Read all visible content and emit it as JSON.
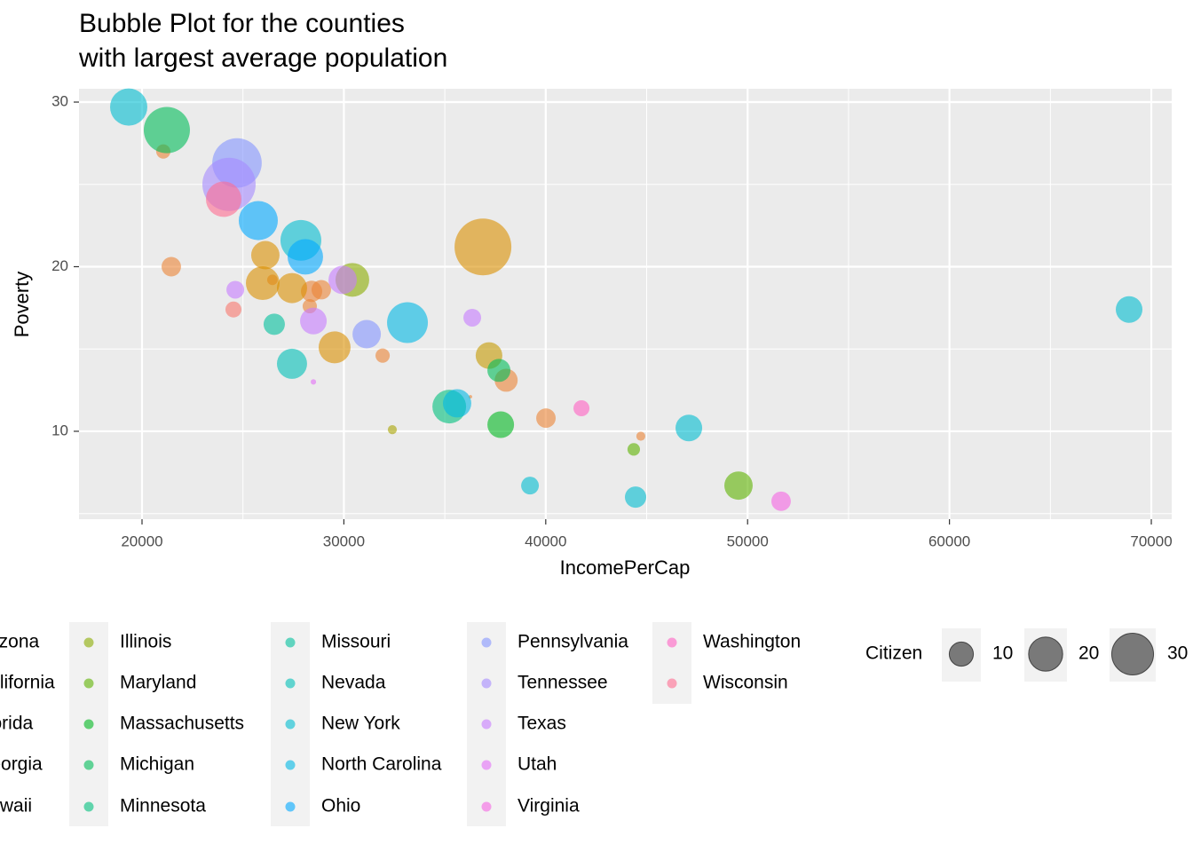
{
  "chart_data": {
    "type": "scatter",
    "title": "Bubble Plot for the counties\nwith largest average population",
    "x_label": "IncomePerCap",
    "y_label": "Poverty",
    "xlim": [
      16878,
      71010
    ],
    "ylim": [
      4.66,
      30.81
    ],
    "xticks": [
      20000,
      30000,
      40000,
      50000,
      60000,
      70000
    ],
    "yticks": [
      10,
      20,
      30
    ],
    "grid": true,
    "minor_grid": true,
    "size_legend": {
      "title": "Citizen",
      "values": [
        10,
        20,
        30
      ]
    },
    "series": [
      {
        "name": "Arizona",
        "color": "#F8766D",
        "x": [
          24530
        ],
        "values": [
          17.4
        ],
        "size": [
          4.4
        ]
      },
      {
        "name": "California",
        "color": "#EB8335",
        "x": [
          21055,
          21450,
          26460,
          28400,
          28880,
          28310,
          31920,
          38040,
          36270,
          40010,
          44710
        ],
        "values": [
          27.0,
          20.0,
          19.2,
          18.5,
          18.6,
          17.6,
          14.6,
          13.1,
          12.1,
          10.8,
          9.7
        ],
        "size": [
          3.5,
          6.5,
          1.9,
          7.8,
          6.5,
          3.5,
          3.5,
          9.1,
          0.2,
          6.5,
          1.4
        ]
      },
      {
        "name": "Florida",
        "color": "#DA8F00",
        "x": [
          36890,
          26110,
          25980,
          27430,
          29540
        ],
        "values": [
          21.2,
          20.7,
          19.0,
          18.7,
          15.1
        ],
        "size": [
          55.4,
          13.8,
          19.5,
          15.6,
          17.5
        ]
      },
      {
        "name": "Georgia",
        "color": "#C49A00",
        "x": [
          37190
        ],
        "values": [
          14.6
        ],
        "size": [
          12.2
        ]
      },
      {
        "name": "Hawaii",
        "color": "#A9A400",
        "x": [
          32400
        ],
        "values": [
          10.1
        ],
        "size": [
          1.4
        ]
      },
      {
        "name": "Illinois",
        "color": "#8AAC00",
        "x": [
          30420
        ],
        "values": [
          19.2
        ],
        "size": [
          19.5
        ]
      },
      {
        "name": "Maryland",
        "color": "#5EB300",
        "x": [
          44360,
          49550
        ],
        "values": [
          8.9,
          6.7
        ],
        "size": [
          2.7,
          13.8
        ]
      },
      {
        "name": "Massachusetts",
        "color": "#00B81F",
        "x": [
          37770
        ],
        "values": [
          10.4
        ],
        "size": [
          12.2
        ]
      },
      {
        "name": "Michigan",
        "color": "#00BC59",
        "x": [
          21230,
          37680
        ],
        "values": [
          28.3,
          13.7
        ],
        "size": [
          36.6,
          9.1
        ]
      },
      {
        "name": "Minnesota",
        "color": "#00BF7D",
        "x": [
          35220
        ],
        "values": [
          11.5
        ],
        "size": [
          19.5
        ]
      },
      {
        "name": "Missouri",
        "color": "#00C09C",
        "x": [
          26550
        ],
        "values": [
          16.5
        ],
        "size": [
          7.8
        ]
      },
      {
        "name": "Nevada",
        "color": "#00C0B7",
        "x": [
          27430
        ],
        "values": [
          14.1
        ],
        "size": [
          15.6
        ]
      },
      {
        "name": "New York",
        "color": "#00BDD0",
        "x": [
          19340,
          27870,
          47090,
          39220,
          44450,
          68900
        ],
        "values": [
          29.7,
          21.6,
          10.2,
          6.7,
          6.0,
          17.4
        ],
        "size": [
          23.8,
          28.6,
          12.2,
          5.4,
          7.8,
          12.2
        ]
      },
      {
        "name": "North Carolina",
        "color": "#00B7E5",
        "x": [
          33150,
          35610
        ],
        "values": [
          16.6,
          11.7
        ],
        "size": [
          28.6,
          13.8
        ]
      },
      {
        "name": "Ohio",
        "color": "#00A9FF",
        "x": [
          25760,
          28090
        ],
        "values": [
          22.8,
          20.6
        ],
        "size": [
          26.2,
          21.6
        ]
      },
      {
        "name": "Pennsylvania",
        "color": "#8494FF",
        "x": [
          24705,
          31130
        ],
        "values": [
          26.3,
          15.9
        ],
        "size": [
          42,
          13.8
        ]
      },
      {
        "name": "Tennessee",
        "color": "#A58AFF",
        "x": [
          24310
        ],
        "values": [
          25.0
        ],
        "size": [
          48.7
        ]
      },
      {
        "name": "Texas",
        "color": "#C77CFF",
        "x": [
          29940,
          24620,
          28490,
          36360
        ],
        "values": [
          19.2,
          18.6,
          16.7,
          16.9
        ],
        "size": [
          13.8,
          5.4,
          12.2,
          5.4
        ]
      },
      {
        "name": "Utah",
        "color": "#E36EF6",
        "x": [
          28490
        ],
        "values": [
          13.0
        ],
        "size": [
          0.5
        ]
      },
      {
        "name": "Virginia",
        "color": "#F564E3",
        "x": [
          51660
        ],
        "values": [
          5.75
        ],
        "size": [
          6.5
        ]
      },
      {
        "name": "Washington",
        "color": "#FF61C3",
        "x": [
          41770
        ],
        "values": [
          11.4
        ],
        "size": [
          4.4
        ]
      },
      {
        "name": "Wisconsin",
        "color": "#FF6C91",
        "x": [
          24045
        ],
        "values": [
          24.1
        ],
        "size": [
          21.6
        ]
      }
    ]
  }
}
